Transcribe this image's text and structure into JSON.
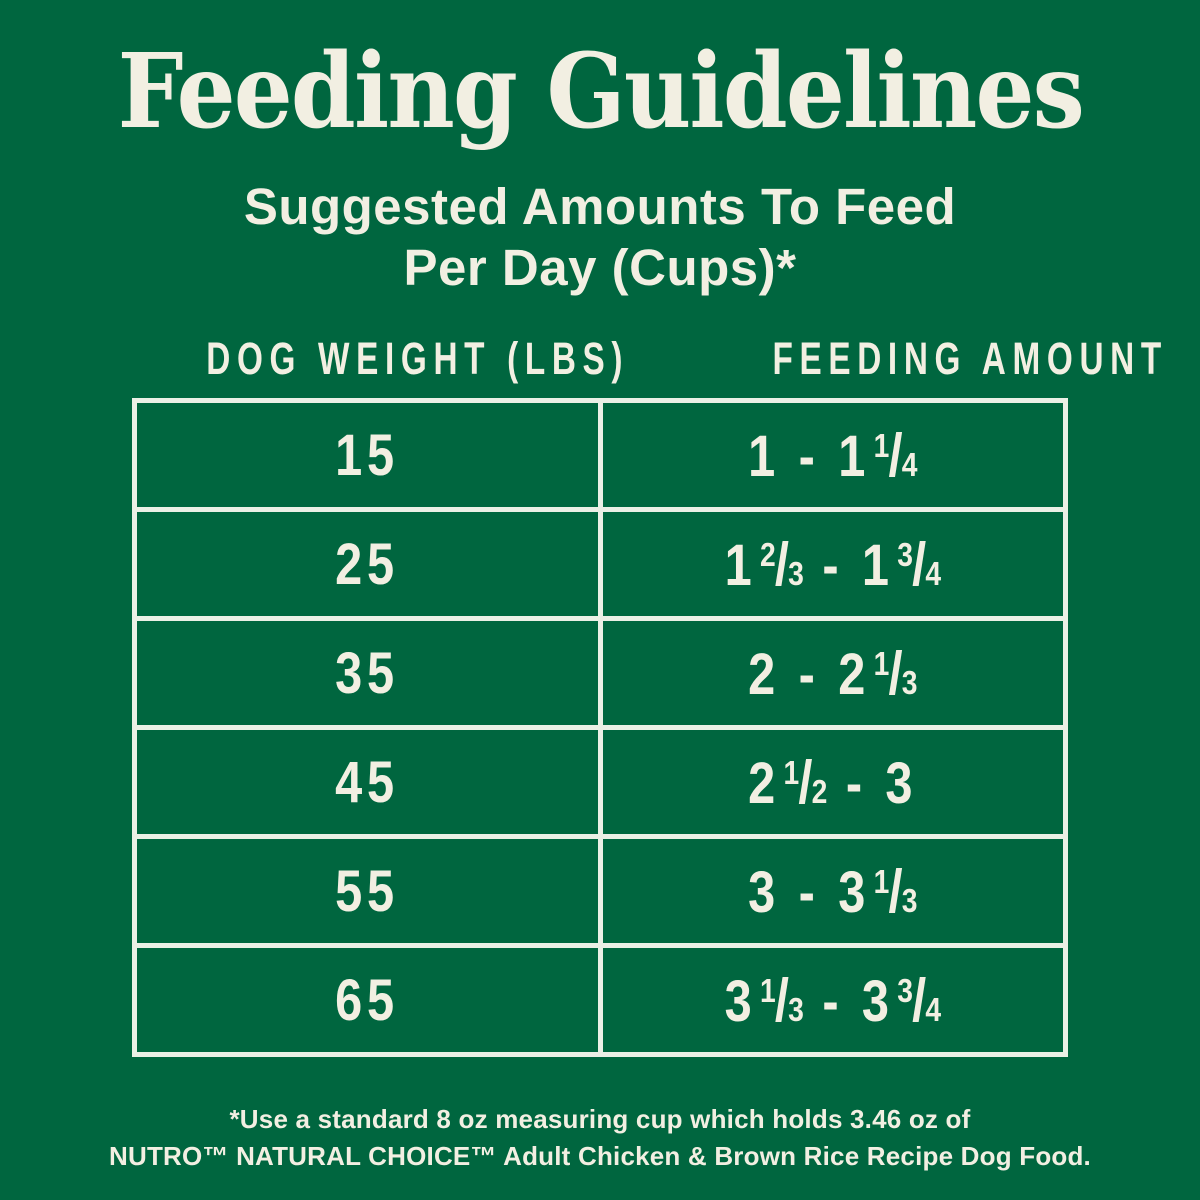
{
  "colors": {
    "background": "#00663F",
    "text": "#F2EFE2",
    "table_border": "#EBF0E6"
  },
  "title": "Feeding Guidelines",
  "subtitle": {
    "line1": "Suggested Amounts To Feed",
    "line2": "Per Day (Cups)*"
  },
  "table": {
    "headers": [
      "DOG WEIGHT (LBS)",
      "FEEDING AMOUNT"
    ],
    "range_separator": "-",
    "rows": [
      {
        "weight": "15",
        "amount_display": "1 - 1 1/4",
        "min": {
          "whole": "1"
        },
        "max": {
          "whole": "1",
          "num": "1",
          "den": "4"
        }
      },
      {
        "weight": "25",
        "amount_display": "1 2/3 - 1 3/4",
        "min": {
          "whole": "1",
          "num": "2",
          "den": "3"
        },
        "max": {
          "whole": "1",
          "num": "3",
          "den": "4"
        }
      },
      {
        "weight": "35",
        "amount_display": "2 - 2 1/3",
        "min": {
          "whole": "2"
        },
        "max": {
          "whole": "2",
          "num": "1",
          "den": "3"
        }
      },
      {
        "weight": "45",
        "amount_display": "2 1/2 - 3",
        "min": {
          "whole": "2",
          "num": "1",
          "den": "2"
        },
        "max": {
          "whole": "3"
        }
      },
      {
        "weight": "55",
        "amount_display": "3 - 3 1/3",
        "min": {
          "whole": "3"
        },
        "max": {
          "whole": "3",
          "num": "1",
          "den": "3"
        }
      },
      {
        "weight": "65",
        "amount_display": "3 1/3 - 3 3/4",
        "min": {
          "whole": "3",
          "num": "1",
          "den": "3"
        },
        "max": {
          "whole": "3",
          "num": "3",
          "den": "4"
        }
      }
    ]
  },
  "footnote": {
    "line1": "*Use a standard 8 oz measuring cup which holds 3.46 oz of",
    "line2": "NUTRO™ NATURAL CHOICE™ Adult Chicken & Brown Rice Recipe Dog Food."
  }
}
